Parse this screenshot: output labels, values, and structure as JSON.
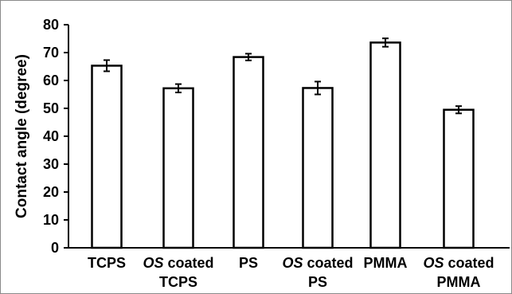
{
  "chart_data": {
    "type": "bar",
    "title": "",
    "xlabel": "",
    "ylabel": "Contact angle (degree)",
    "ylim": [
      0,
      80
    ],
    "yticks": [
      0,
      10,
      20,
      30,
      40,
      50,
      60,
      70,
      80
    ],
    "grid": false,
    "legend": "none",
    "categories": [
      {
        "lines": [
          [
            {
              "t": "TCPS",
              "i": false
            }
          ]
        ]
      },
      {
        "lines": [
          [
            {
              "t": "OS",
              "i": true
            },
            {
              "t": " coated",
              "i": false
            }
          ],
          [
            {
              "t": "TCPS",
              "i": false
            }
          ]
        ]
      },
      {
        "lines": [
          [
            {
              "t": "PS",
              "i": false
            }
          ]
        ]
      },
      {
        "lines": [
          [
            {
              "t": "OS",
              "i": true
            },
            {
              "t": " coated",
              "i": false
            }
          ],
          [
            {
              "t": "PS",
              "i": false
            }
          ]
        ]
      },
      {
        "lines": [
          [
            {
              "t": "PMMA",
              "i": false
            }
          ]
        ]
      },
      {
        "lines": [
          [
            {
              "t": "OS",
              "i": true
            },
            {
              "t": " coated",
              "i": false
            }
          ],
          [
            {
              "t": "PMMA",
              "i": false
            }
          ]
        ]
      }
    ],
    "values": [
      65.3,
      57.2,
      68.4,
      57.3,
      73.6,
      49.5
    ],
    "errors": [
      2.0,
      1.5,
      1.2,
      2.3,
      1.5,
      1.3
    ],
    "colors": {
      "bar_fill": "#ffffff",
      "bar_stroke": "#000000",
      "axis": "#000000"
    }
  }
}
